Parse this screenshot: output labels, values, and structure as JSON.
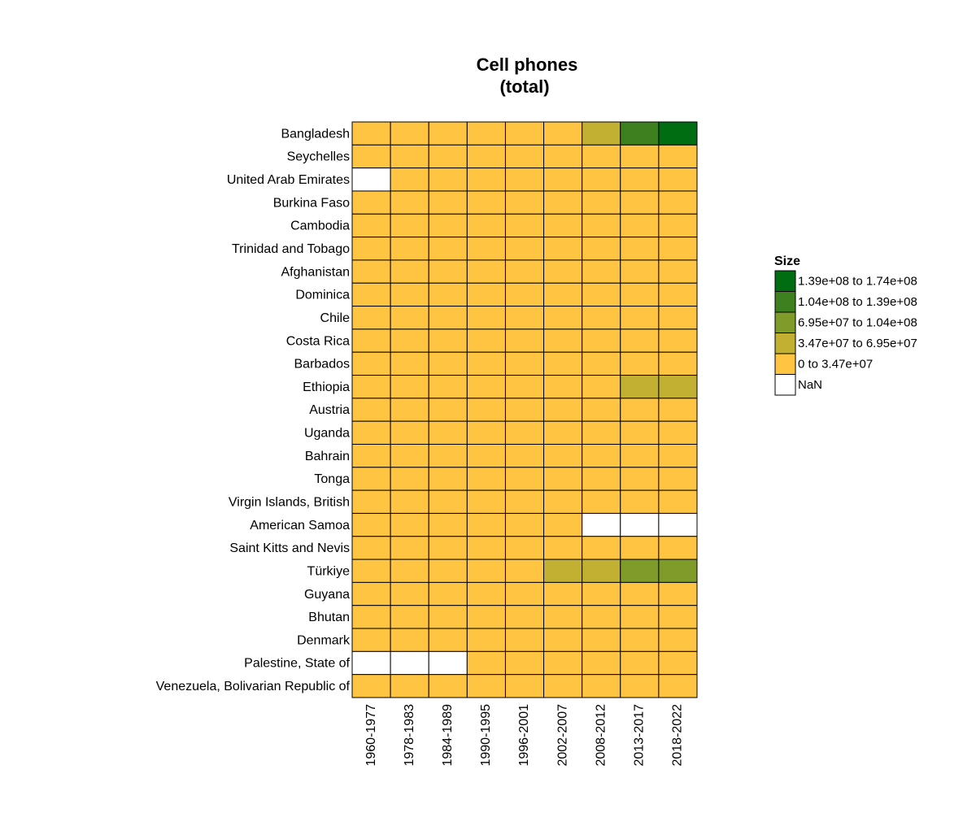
{
  "chart_data": {
    "type": "heatmap",
    "title": [
      "Cell phones",
      "(total)"
    ],
    "legend_title": "Size",
    "categories": [
      "1960-1977",
      "1978-1983",
      "1984-1989",
      "1990-1995",
      "1996-2001",
      "2002-2007",
      "2008-2012",
      "2013-2017",
      "2018-2022"
    ],
    "rows": [
      "Bangladesh",
      "Seychelles",
      "United Arab Emirates",
      "Burkina Faso",
      "Cambodia",
      "Trinidad and Tobago",
      "Afghanistan",
      "Dominica",
      "Chile",
      "Costa Rica",
      "Barbados",
      "Ethiopia",
      "Austria",
      "Uganda",
      "Bahrain",
      "Tonga",
      "Virgin Islands, British",
      "American Samoa",
      "Saint Kitts and Nevis",
      "Türkiye",
      "Guyana",
      "Bhutan",
      "Denmark",
      "Palestine, State of",
      "Venezuela, Bolivarian Republic of"
    ],
    "values": [
      [
        0,
        0,
        0,
        2000,
        200000,
        15000000,
        55000000,
        125000000,
        170000000
      ],
      [
        0,
        0,
        0,
        200,
        20000,
        70000,
        130000,
        170000,
        190000
      ],
      [
        null,
        5000,
        15000,
        100000,
        1200000,
        5000000,
        11000000,
        19000000,
        19500000
      ],
      [
        0,
        0,
        0,
        0,
        30000,
        1200000,
        7000000,
        16000000,
        21000000
      ],
      [
        0,
        0,
        0,
        10000,
        150000,
        1500000,
        12000000,
        19000000,
        20000000
      ],
      [
        0,
        0,
        500,
        5000,
        150000,
        1100000,
        1800000,
        2000000,
        2000000
      ],
      [
        0,
        0,
        0,
        0,
        0,
        2500000,
        13000000,
        20000000,
        22000000
      ],
      [
        0,
        0,
        0,
        300,
        1500,
        50000,
        120000,
        110000,
        100000
      ],
      [
        0,
        0,
        2000,
        60000,
        2500000,
        10000000,
        19000000,
        25000000,
        26000000
      ],
      [
        0,
        0,
        0,
        8000,
        200000,
        1200000,
        3500000,
        7000000,
        8000000
      ],
      [
        0,
        0,
        500,
        5000,
        30000,
        200000,
        300000,
        310000,
        320000
      ],
      [
        0,
        0,
        0,
        0,
        15000,
        900000,
        12000000,
        45000000,
        55000000
      ],
      [
        0,
        3000,
        15000,
        300000,
        4000000,
        8500000,
        11000000,
        12500000,
        13000000
      ],
      [
        0,
        0,
        0,
        1000,
        100000,
        2500000,
        12000000,
        22000000,
        28000000
      ],
      [
        0,
        0,
        2000,
        25000,
        200000,
        900000,
        1900000,
        2600000,
        2300000
      ],
      [
        0,
        0,
        0,
        100,
        200,
        25000,
        60000,
        80000,
        70000
      ],
      [
        0,
        0,
        0,
        500,
        3000,
        15000,
        30000,
        35000,
        40000
      ],
      [
        0,
        0,
        0,
        1000,
        2000,
        2100,
        null,
        null,
        null
      ],
      [
        0,
        0,
        0,
        100,
        2000,
        50000,
        75000,
        80000,
        80000
      ],
      [
        0,
        0,
        0,
        150000,
        12000000,
        45000000,
        63000000,
        73000000,
        80000000
      ],
      [
        0,
        0,
        0,
        1000,
        20000,
        300000,
        550000,
        700000,
        800000
      ],
      [
        0,
        0,
        0,
        0,
        0,
        80000,
        450000,
        650000,
        750000
      ],
      [
        0,
        10000,
        60000,
        700000,
        3500000,
        5300000,
        6700000,
        7000000,
        7200000
      ],
      [
        null,
        null,
        null,
        5000,
        150000,
        1300000,
        3000000,
        4000000,
        4100000
      ],
      [
        0,
        0,
        2000,
        150000,
        4000000,
        15000000,
        28000000,
        29000000,
        20000000
      ]
    ],
    "bins": [
      {
        "range": [
          139000000,
          174000000
        ],
        "label": "1.39e+08 to 1.74e+08",
        "color": "#006d12"
      },
      {
        "range": [
          104000000,
          139000000
        ],
        "label": "1.04e+08 to 1.39e+08",
        "color": "#3e8020"
      },
      {
        "range": [
          69500000,
          104000000
        ],
        "label": "6.95e+07 to 1.04e+08",
        "color": "#7f9c2a"
      },
      {
        "range": [
          34700000,
          69500000
        ],
        "label": "3.47e+07 to 6.95e+07",
        "color": "#c2b033"
      },
      {
        "range": [
          0,
          34700000
        ],
        "label": "0 to 3.47e+07",
        "color": "#ffc441"
      }
    ],
    "nan_label": "NaN",
    "nan_color": "#ffffff"
  }
}
